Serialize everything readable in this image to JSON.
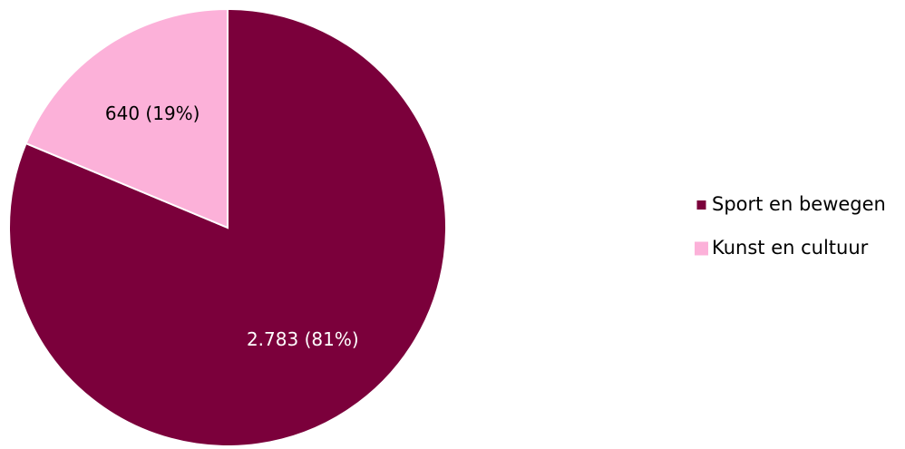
{
  "chart_data": {
    "type": "pie",
    "categories": [
      "Sport en bewegen",
      "Kunst en cultuur"
    ],
    "values": [
      2783,
      640
    ],
    "data_labels": [
      "2.783 (81%)",
      "640 (19%)"
    ],
    "colors": [
      "#7b003b",
      "#fcb1d9"
    ],
    "label_colors": [
      "#ffffff",
      "#000000"
    ],
    "start_angle_deg": 0,
    "direction": "clockwise",
    "legend": {
      "placement": "right",
      "entries": [
        "Sport en bewegen",
        "Kunst en cultuur"
      ]
    },
    "title": ""
  }
}
